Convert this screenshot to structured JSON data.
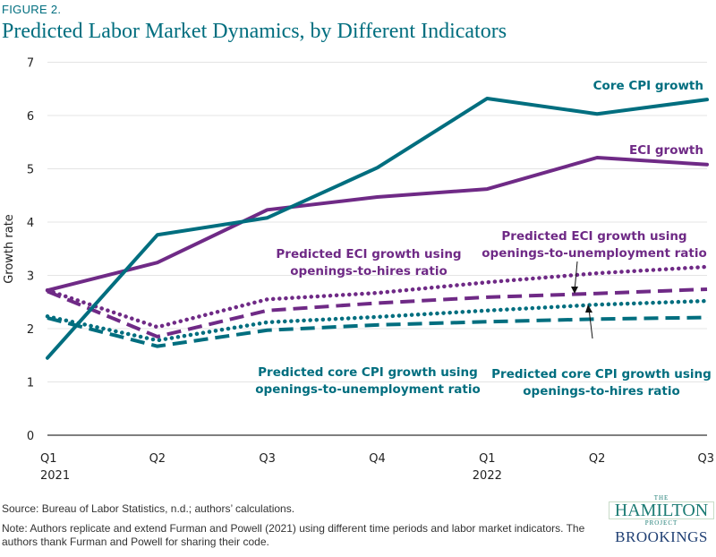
{
  "figure_label": "FIGURE 2.",
  "title": "Predicted Labor Market Dynamics, by Different Indicators",
  "source": "Source: Bureau of Labor Statistics, n.d.; authors’ calculations.",
  "note": "Note: Authors replicate and extend Furman and Powell (2021) using different time periods and labor market indicators. The authors thank Furman and Powell for sharing their code.",
  "logo": {
    "the": "THE",
    "hamilton": "HAMILTON",
    "project": "PROJECT",
    "brookings": "BROOKINGS"
  },
  "colors": {
    "teal": "#006e7f",
    "purple": "#6f2a86"
  },
  "chart_data": {
    "type": "line",
    "title": "Predicted Labor Market Dynamics, by Different Indicators",
    "xlabel": "",
    "ylabel": "Growth rate",
    "ylim": [
      0,
      7
    ],
    "yticks": [
      "0",
      "1",
      "2",
      "3",
      "4",
      "5",
      "6",
      "7"
    ],
    "grid": true,
    "categories": [
      "Q1 2021",
      "Q2",
      "Q3",
      "Q4",
      "Q1 2022",
      "Q2",
      "Q3"
    ],
    "x_tick_labels": [
      [
        "Q1",
        "2021"
      ],
      [
        "Q2",
        ""
      ],
      [
        "Q3",
        ""
      ],
      [
        "Q4",
        ""
      ],
      [
        "Q1",
        "2022"
      ],
      [
        "Q2",
        ""
      ],
      [
        "Q3",
        ""
      ]
    ],
    "series": [
      {
        "name": "Core CPI growth",
        "color": "#006e7f",
        "style": "solid",
        "values": [
          1.45,
          3.76,
          4.08,
          5.02,
          6.32,
          6.03,
          6.3
        ]
      },
      {
        "name": "ECI growth",
        "color": "#6f2a86",
        "style": "solid",
        "values": [
          2.72,
          3.24,
          4.23,
          4.47,
          4.62,
          5.21,
          5.08
        ]
      },
      {
        "name": "Predicted ECI growth using openings-to-hires ratio",
        "color": "#6f2a86",
        "style": "dotted",
        "values": [
          2.72,
          2.03,
          2.55,
          2.67,
          2.87,
          3.04,
          3.16
        ]
      },
      {
        "name": "Predicted ECI growth using openings-to-unemployment ratio",
        "color": "#6f2a86",
        "style": "dashed",
        "values": [
          2.7,
          1.85,
          2.34,
          2.48,
          2.59,
          2.66,
          2.74
        ]
      },
      {
        "name": "Predicted core CPI growth using openings-to-hires ratio",
        "color": "#006e7f",
        "style": "dotted",
        "values": [
          2.23,
          1.78,
          2.12,
          2.22,
          2.34,
          2.45,
          2.52
        ]
      },
      {
        "name": "Predicted core CPI growth using openings-to-unemployment ratio",
        "color": "#006e7f",
        "style": "dashed",
        "values": [
          2.2,
          1.67,
          1.97,
          2.07,
          2.13,
          2.18,
          2.21
        ]
      }
    ],
    "annotations": [
      {
        "lines": [
          "Core CPI growth"
        ],
        "color": "#006e7f"
      },
      {
        "lines": [
          "ECI growth"
        ],
        "color": "#6f2a86"
      },
      {
        "lines": [
          "Predicted ECI growth using",
          "openings-to-hires ratio"
        ],
        "color": "#6f2a86"
      },
      {
        "lines": [
          "Predicted ECI growth using",
          "openings-to-unemployment ratio"
        ],
        "color": "#6f2a86"
      },
      {
        "lines": [
          "Predicted core CPI growth using",
          "openings-to-unemployment ratio"
        ],
        "color": "#006e7f"
      },
      {
        "lines": [
          "Predicted core CPI growth using",
          "openings-to-hires ratio"
        ],
        "color": "#006e7f"
      }
    ]
  }
}
